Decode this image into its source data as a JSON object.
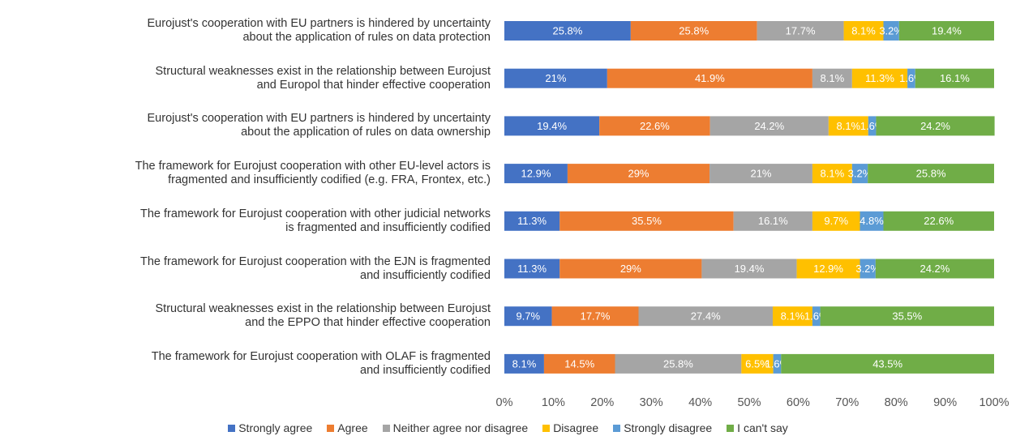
{
  "chart_data": {
    "type": "stacked-barh",
    "categories": [
      "Eurojust's cooperation with EU partners is hindered by uncertainty\nabout the application of rules on data protection",
      "Structural weaknesses exist in the relationship between Eurojust\nand Europol that hinder effective cooperation",
      "Eurojust's cooperation with EU partners is hindered by uncertainty\nabout the application of rules on data ownership",
      "The framework for Eurojust cooperation with other EU-level actors is\nfragmented and insufficiently codified (e.g. FRA, Frontex, etc.)",
      "The framework for Eurojust cooperation with other judicial networks\nis fragmented and insufficiently codified",
      "The framework for Eurojust cooperation with the EJN is fragmented\nand insufficiently codified",
      "Structural weaknesses exist in the relationship between Eurojust\nand the EPPO that hinder effective cooperation",
      "The framework for Eurojust cooperation with OLAF is fragmented\nand insufficiently codified"
    ],
    "series": [
      {
        "name": "Strongly agree",
        "color": "#4472c4",
        "values": [
          25.8,
          21,
          19.4,
          12.9,
          11.3,
          11.3,
          9.7,
          8.1
        ],
        "value_labels": [
          "25.8%",
          "21%",
          "19.4%",
          "12.9%",
          "11.3%",
          "11.3%",
          "9.7%",
          "8.1%"
        ]
      },
      {
        "name": "Agree",
        "color": "#ed7d31",
        "values": [
          25.8,
          41.9,
          22.6,
          29,
          35.5,
          29,
          17.7,
          14.5
        ],
        "value_labels": [
          "25.8%",
          "41.9%",
          "22.6%",
          "29%",
          "35.5%",
          "29%",
          "17.7%",
          "14.5%"
        ]
      },
      {
        "name": "Neither agree nor disagree",
        "color": "#a5a5a5",
        "values": [
          17.7,
          8.1,
          24.2,
          21,
          16.1,
          19.4,
          27.4,
          25.8
        ],
        "value_labels": [
          "17.7%",
          "8.1%",
          "24.2%",
          "21%",
          "16.1%",
          "19.4%",
          "27.4%",
          "25.8%"
        ]
      },
      {
        "name": "Disagree",
        "color": "#ffc000",
        "values": [
          8.1,
          11.3,
          8.1,
          8.1,
          9.7,
          12.9,
          8.1,
          6.5
        ],
        "value_labels": [
          "8.1%",
          "11.3%",
          "8.1%",
          "8.1%",
          "9.7%",
          "12.9%",
          "8.1%",
          "6.5%"
        ]
      },
      {
        "name": "Strongly disagree",
        "color": "#5b9bd5",
        "values": [
          3.2,
          1.6,
          1.6,
          3.2,
          4.8,
          3.2,
          1.6,
          1.6
        ],
        "value_labels": [
          "3.2%",
          "1.6%",
          "1.6%",
          "3.2%",
          "4.8%",
          "3.2%",
          "1.6%",
          "1.6%"
        ]
      },
      {
        "name": "I can't say",
        "color": "#70ad47",
        "values": [
          19.4,
          16.1,
          24.2,
          25.8,
          22.6,
          24.2,
          35.5,
          43.5
        ],
        "value_labels": [
          "19.4%",
          "16.1%",
          "24.2%",
          "25.8%",
          "22.6%",
          "24.2%",
          "35.5%",
          "43.5%"
        ]
      }
    ],
    "xlim": [
      0,
      100
    ],
    "xticks": [
      {
        "value": 0,
        "label": "0%"
      },
      {
        "value": 10,
        "label": "10%"
      },
      {
        "value": 20,
        "label": "20%"
      },
      {
        "value": 30,
        "label": "30%"
      },
      {
        "value": 40,
        "label": "40%"
      },
      {
        "value": 50,
        "label": "50%"
      },
      {
        "value": 60,
        "label": "60%"
      },
      {
        "value": 70,
        "label": "70%"
      },
      {
        "value": 80,
        "label": "80%"
      },
      {
        "value": 90,
        "label": "90%"
      },
      {
        "value": 100,
        "label": "100%"
      }
    ],
    "legend": "bottom"
  }
}
